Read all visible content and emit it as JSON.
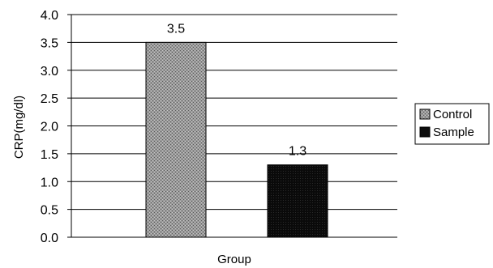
{
  "chart_data": {
    "type": "bar",
    "categories": [
      "Control",
      "Sample"
    ],
    "values": [
      3.5,
      1.3
    ],
    "data_labels": [
      "3.5",
      "1.3"
    ],
    "xlabel": "Group",
    "ylabel": "CRP(mg/dl)",
    "ylim": [
      0,
      4.0
    ],
    "yticks": [
      "0.0",
      "0.5",
      "1.0",
      "1.5",
      "2.0",
      "2.5",
      "3.0",
      "3.5",
      "4.0"
    ],
    "grid": true,
    "legend": {
      "placement": "right",
      "entries": [
        {
          "label": "Control",
          "color": "#8c8c8c",
          "pattern": "stipple"
        },
        {
          "label": "Sample",
          "color": "#0d0d0d",
          "pattern": "solid"
        }
      ]
    }
  }
}
